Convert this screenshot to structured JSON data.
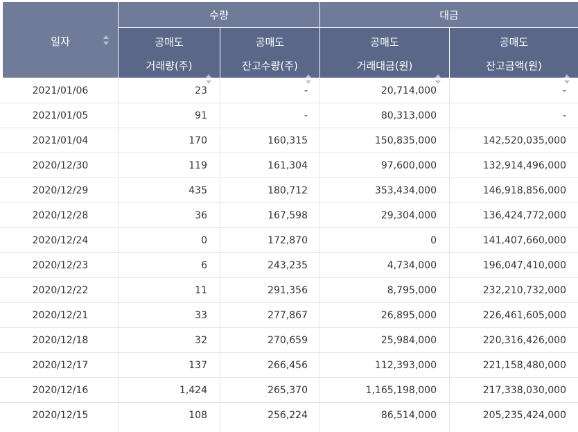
{
  "header": {
    "date": "일자",
    "quantity_group": "수량",
    "amount_group": "대금",
    "columns": [
      {
        "line1": "공매도",
        "line2": "거래량(주)"
      },
      {
        "line1": "공매도",
        "line2": "잔고수량(주)"
      },
      {
        "line1": "공매도",
        "line2": "거래대금(원)"
      },
      {
        "line1": "공매도",
        "line2": "잔고금액(원)"
      }
    ]
  },
  "rows": [
    {
      "date": "2021/01/06",
      "volume": "23",
      "balance_qty": "-",
      "trade_amount": "20,714,000",
      "balance_amount": "-"
    },
    {
      "date": "2021/01/05",
      "volume": "91",
      "balance_qty": "-",
      "trade_amount": "80,313,000",
      "balance_amount": "-"
    },
    {
      "date": "2021/01/04",
      "volume": "170",
      "balance_qty": "160,315",
      "trade_amount": "150,835,000",
      "balance_amount": "142,520,035,000"
    },
    {
      "date": "2020/12/30",
      "volume": "119",
      "balance_qty": "161,304",
      "trade_amount": "97,600,000",
      "balance_amount": "132,914,496,000"
    },
    {
      "date": "2020/12/29",
      "volume": "435",
      "balance_qty": "180,712",
      "trade_amount": "353,434,000",
      "balance_amount": "146,918,856,000"
    },
    {
      "date": "2020/12/28",
      "volume": "36",
      "balance_qty": "167,598",
      "trade_amount": "29,304,000",
      "balance_amount": "136,424,772,000"
    },
    {
      "date": "2020/12/24",
      "volume": "0",
      "balance_qty": "172,870",
      "trade_amount": "0",
      "balance_amount": "141,407,660,000"
    },
    {
      "date": "2020/12/23",
      "volume": "6",
      "balance_qty": "243,235",
      "trade_amount": "4,734,000",
      "balance_amount": "196,047,410,000"
    },
    {
      "date": "2020/12/22",
      "volume": "11",
      "balance_qty": "291,356",
      "trade_amount": "8,795,000",
      "balance_amount": "232,210,732,000"
    },
    {
      "date": "2020/12/21",
      "volume": "33",
      "balance_qty": "277,867",
      "trade_amount": "26,895,000",
      "balance_amount": "226,461,605,000"
    },
    {
      "date": "2020/12/18",
      "volume": "32",
      "balance_qty": "270,659",
      "trade_amount": "25,984,000",
      "balance_amount": "220,316,426,000"
    },
    {
      "date": "2020/12/17",
      "volume": "137",
      "balance_qty": "266,456",
      "trade_amount": "112,393,000",
      "balance_amount": "221,158,480,000"
    },
    {
      "date": "2020/12/16",
      "volume": "1,424",
      "balance_qty": "265,370",
      "trade_amount": "1,165,198,000",
      "balance_amount": "217,338,030,000"
    },
    {
      "date": "2020/12/15",
      "volume": "108",
      "balance_qty": "256,224",
      "trade_amount": "86,514,000",
      "balance_amount": "205,235,424,000"
    }
  ]
}
